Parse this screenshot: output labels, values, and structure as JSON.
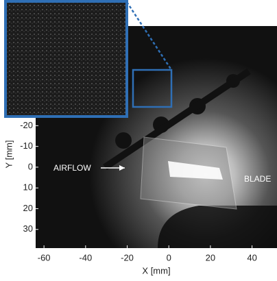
{
  "chart_data": {
    "type": "image",
    "xlabel": "X [mm]",
    "ylabel": "Y [mm]",
    "xlim": [
      -64,
      52
    ],
    "ylim": [
      -68,
      39
    ],
    "y_inverted": true,
    "xticks": [
      -60,
      -40,
      -20,
      0,
      20,
      40
    ],
    "yticks": [
      -20,
      -10,
      0,
      10,
      20,
      30
    ],
    "annotations": [
      "AIRFLOW",
      "BLADE"
    ]
  }
}
